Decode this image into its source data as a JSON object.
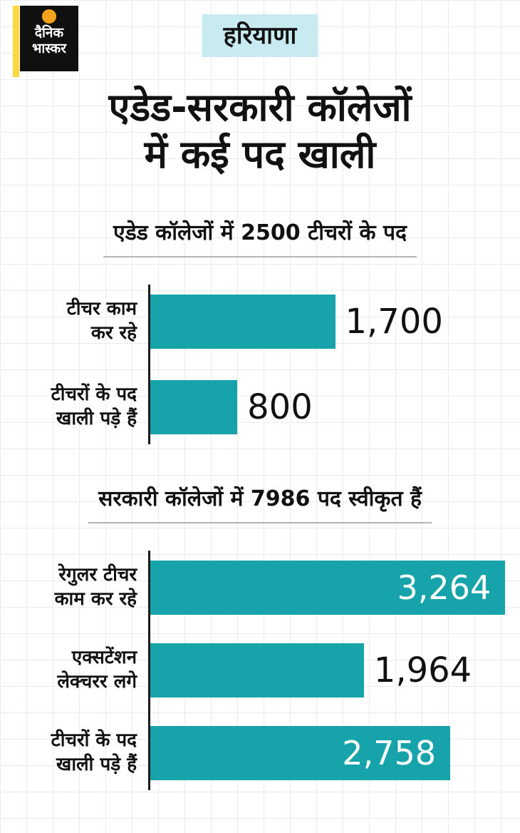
{
  "colors": {
    "teal": "#16a3aa",
    "badge": "#c8eaf1",
    "yellow": "#ffd83d",
    "orange": "#f5a31c"
  },
  "logo": {
    "text": "दैनिक\nभास्कर"
  },
  "badge": "हरियाणा",
  "title": "एडेड-सरकारी कॉलेजों\nमें कई पद खाली",
  "chart_data": [
    {
      "type": "bar",
      "orientation": "horizontal",
      "title": "एडेड कॉलेजों में 2500 टीचरों के पद",
      "categories": [
        "टीचर काम\nकर रहे",
        "टीचरों के पद\nखाली पड़े हैं"
      ],
      "values": [
        1700,
        800
      ],
      "value_labels": [
        "1,700",
        "800"
      ],
      "value_label_position": [
        "outside",
        "outside"
      ],
      "bar_color": "#16a3aa",
      "scale_max": 3400,
      "xlim": [
        0,
        3400
      ],
      "grid": false,
      "legend": false
    },
    {
      "type": "bar",
      "orientation": "horizontal",
      "title": "सरकारी कॉलेजों में 7986 पद स्वीकृत हैं",
      "categories": [
        "रेगुलर टीचर\nकाम कर रहे",
        "एक्सटेंशन\nलेक्चरर लगे",
        "टीचरों के पद\nखाली पड़े हैं"
      ],
      "values": [
        3264,
        1964,
        2758
      ],
      "value_labels": [
        "3,264",
        "1,964",
        "2,758"
      ],
      "value_label_position": [
        "inside",
        "outside",
        "inside"
      ],
      "bar_color": "#16a3aa",
      "scale_max": 3400,
      "xlim": [
        0,
        3400
      ],
      "grid": false,
      "legend": false
    }
  ]
}
